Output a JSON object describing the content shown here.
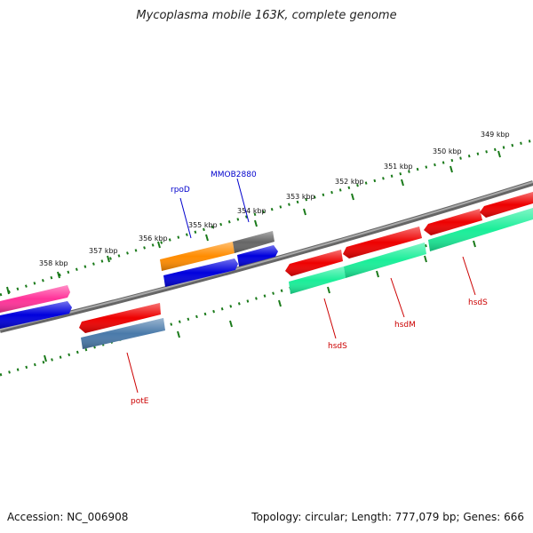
{
  "title": "Mycoplasma mobile 163K, complete genome",
  "footer": {
    "accession": "Accession: NC_006908",
    "summary": "Topology: circular; Length: 777,079 bp; Genes: 666"
  },
  "colors": {
    "backbone": "#7a7a7a",
    "scale_dots": "#1a7a1a",
    "label_red": "#cc0000",
    "label_blue": "#0000cc"
  },
  "scale_labels": [
    "349 kbp",
    "350 kbp",
    "351 kbp",
    "352 kbp",
    "353 kbp",
    "354 kbp",
    "355 kbp",
    "356 kbp",
    "357 kbp",
    "358 kbp"
  ],
  "gene_labels": [
    {
      "text": "rpoD",
      "color": "#0000cc"
    },
    {
      "text": "MMOB2880",
      "color": "#0000cc"
    },
    {
      "text": "potE",
      "color": "#cc0000"
    },
    {
      "text": "hsdS",
      "color": "#cc0000"
    },
    {
      "text": "hsdM",
      "color": "#cc0000"
    },
    {
      "text": "hsdS",
      "color": "#cc0000"
    }
  ],
  "features": [
    {
      "name": "pink-gene",
      "color": "#ff3399"
    },
    {
      "name": "blue-gene-left",
      "color": "#0000dd"
    },
    {
      "name": "potE-gene-red",
      "color": "#ee0000"
    },
    {
      "name": "potE-gene-steelblue",
      "color": "#4a7aaa"
    },
    {
      "name": "rpoD-gene",
      "color": "#ff8c00"
    },
    {
      "name": "rpoD-blue-gene",
      "color": "#0000dd"
    },
    {
      "name": "MMOB2880-gene",
      "color": "#666666"
    },
    {
      "name": "MMOB2880-blue-gene",
      "color": "#0000dd"
    },
    {
      "name": "hsdS-gene-red",
      "color": "#ee0000"
    },
    {
      "name": "hsdM-gene-red",
      "color": "#ee0000"
    },
    {
      "name": "hsdS2-gene-red-a",
      "color": "#ee0000"
    },
    {
      "name": "hsdS2-gene-red-b",
      "color": "#ee0000"
    },
    {
      "name": "hsdS-gene-green",
      "color": "#1aee99"
    },
    {
      "name": "hsdM-gene-green",
      "color": "#1aee99"
    },
    {
      "name": "hsdS2-gene-green",
      "color": "#1aee99"
    }
  ]
}
